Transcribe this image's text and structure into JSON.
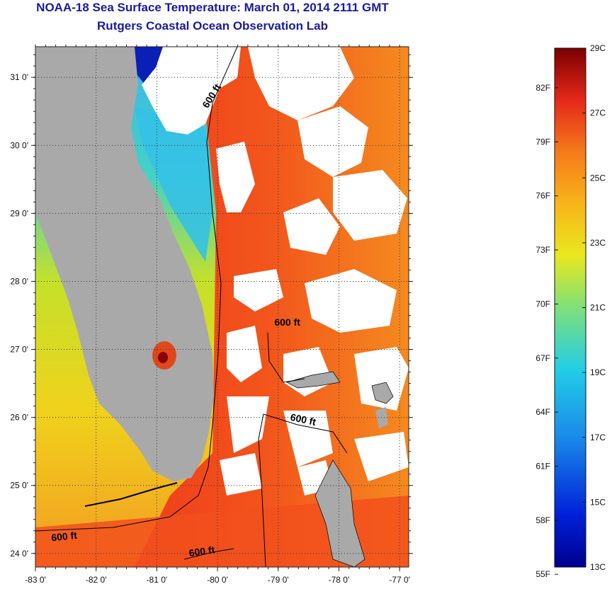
{
  "header": {
    "title": "NOAA-18 Sea Surface Temperature:  March 01, 2014 2111 GMT",
    "subtitle": "Rutgers Coastal Ocean Observation Lab"
  },
  "map": {
    "lon_range": [
      -83.0,
      -76.85
    ],
    "lat_range": [
      23.8,
      31.45
    ],
    "lon_ticks": [
      {
        "value": -83,
        "label": "-83 0'"
      },
      {
        "value": -82,
        "label": "-82 0'"
      },
      {
        "value": -81,
        "label": "-81 0'"
      },
      {
        "value": -80,
        "label": "-80 0'"
      },
      {
        "value": -79,
        "label": "-79 0'"
      },
      {
        "value": -78,
        "label": "-78 0'"
      },
      {
        "value": -77,
        "label": "-77 0'"
      }
    ],
    "lat_ticks": [
      {
        "value": 24,
        "label": "24 0'"
      },
      {
        "value": 25,
        "label": "25 0'"
      },
      {
        "value": 26,
        "label": "26 0'"
      },
      {
        "value": 27,
        "label": "27 0'"
      },
      {
        "value": 28,
        "label": "28 0'"
      },
      {
        "value": 29,
        "label": "29 0'"
      },
      {
        "value": 30,
        "label": "30 0'"
      },
      {
        "value": 31,
        "label": "31 0'"
      }
    ],
    "contour_labels": [
      {
        "text": "600 ft",
        "lon": -80.05,
        "lat": 30.7,
        "rotate": -58
      },
      {
        "text": "600 ft",
        "lon": -78.85,
        "lat": 27.35,
        "rotate": 0
      },
      {
        "text": "600 ft",
        "lon": -78.6,
        "lat": 25.92,
        "rotate": 12
      },
      {
        "text": "600 ft",
        "lon": -82.52,
        "lat": 24.2,
        "rotate": -6
      },
      {
        "text": "600 ft",
        "lon": -80.25,
        "lat": 23.98,
        "rotate": -8
      }
    ],
    "colors": {
      "land": "#a9a9a9",
      "cloud": "#ffffff",
      "gulf_warm": "#f4a323",
      "gulf_mid": "#d9e21f",
      "coastal_cool": "#35c1e6",
      "gulf_stream": "#f0431c",
      "atlantic_orange": "#f07a1e"
    }
  },
  "colorbar": {
    "min_c": 13,
    "max_c": 29,
    "celsius": [
      {
        "value": 29,
        "label": "29C"
      },
      {
        "value": 27,
        "label": "27C"
      },
      {
        "value": 25,
        "label": "25C"
      },
      {
        "value": 23,
        "label": "23C"
      },
      {
        "value": 21,
        "label": "21C"
      },
      {
        "value": 19,
        "label": "19C"
      },
      {
        "value": 17,
        "label": "17C"
      },
      {
        "value": 15,
        "label": "15C"
      },
      {
        "value": 13,
        "label": "13C"
      }
    ],
    "fahrenheit": [
      {
        "value": 82,
        "label": "82F"
      },
      {
        "value": 79,
        "label": "79F"
      },
      {
        "value": 76,
        "label": "76F"
      },
      {
        "value": 73,
        "label": "73F"
      },
      {
        "value": 70,
        "label": "70F"
      },
      {
        "value": 67,
        "label": "67F"
      },
      {
        "value": 64,
        "label": "64F"
      },
      {
        "value": 61,
        "label": "61F"
      },
      {
        "value": 58,
        "label": "58F"
      },
      {
        "value": 55,
        "label": "55F"
      }
    ]
  }
}
